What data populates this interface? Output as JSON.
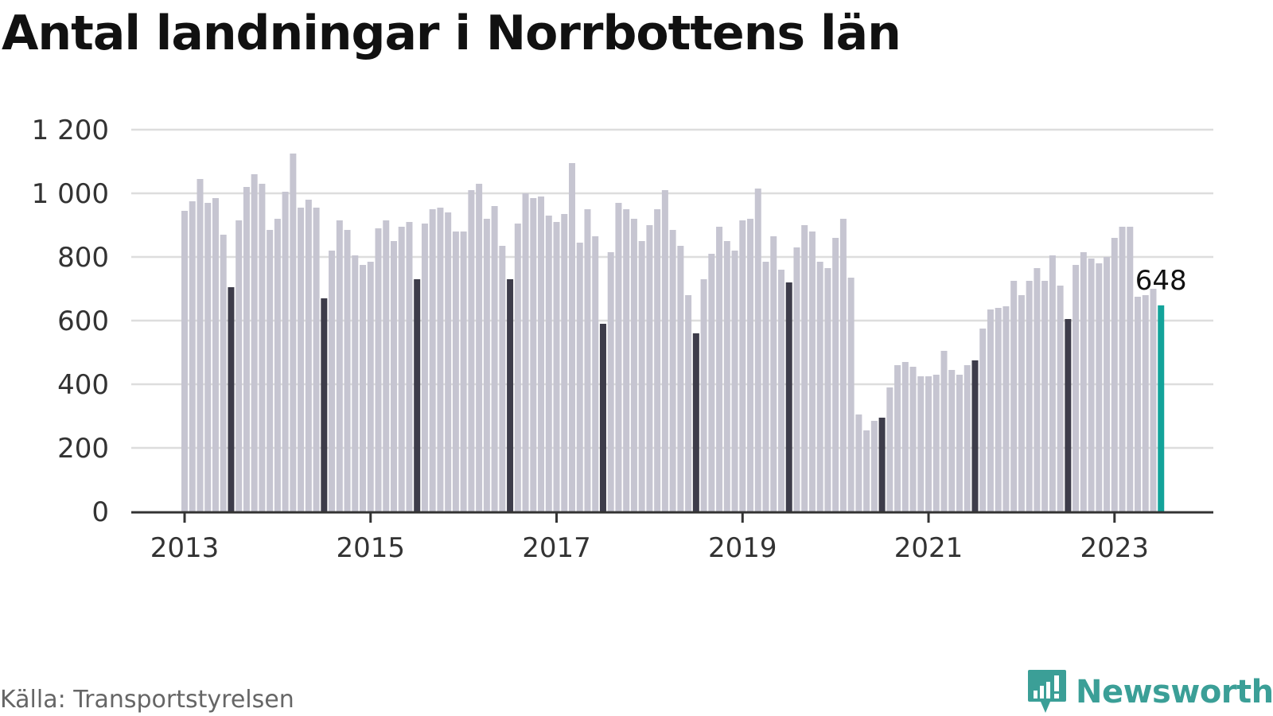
{
  "header": {
    "title": "Antal landningar i Norrbottens län"
  },
  "footer": {
    "source": "Källa: Transportstyrelsen",
    "brand": "Newsworthy"
  },
  "colors": {
    "normal": "#c6c5d1",
    "highlight_july": "#3d3c4a",
    "latest": "#13a39a",
    "grid": "#dddddd",
    "axis": "#333333",
    "brand": "#3b9f97"
  },
  "chart_data": {
    "type": "bar",
    "title": "Antal landningar i Norrbottens län",
    "xlabel": "",
    "ylabel": "",
    "ylim": [
      0,
      1200
    ],
    "yticks": [
      {
        "value": 0,
        "label": "0"
      },
      {
        "value": 200,
        "label": "200"
      },
      {
        "value": 400,
        "label": "400"
      },
      {
        "value": 600,
        "label": "600"
      },
      {
        "value": 800,
        "label": "800"
      },
      {
        "value": 1000,
        "label": "1 000"
      },
      {
        "value": 1200,
        "label": "1 200"
      }
    ],
    "xticks": [
      "2013",
      "2015",
      "2017",
      "2019",
      "2021",
      "2023"
    ],
    "grid": true,
    "start": "2013-01",
    "frequency": "monthly",
    "highlight": "July of each year shown in dark color; latest month shown in teal",
    "annotation": {
      "label": "648",
      "at": "2023-07"
    },
    "values": [
      945,
      975,
      1045,
      970,
      985,
      870,
      705,
      915,
      1020,
      1060,
      1030,
      885,
      920,
      1005,
      1125,
      955,
      980,
      955,
      670,
      820,
      915,
      885,
      805,
      775,
      785,
      890,
      915,
      850,
      895,
      910,
      730,
      905,
      950,
      955,
      940,
      880,
      880,
      1010,
      1030,
      920,
      960,
      835,
      730,
      905,
      1000,
      985,
      990,
      930,
      910,
      935,
      1095,
      845,
      950,
      865,
      590,
      815,
      970,
      950,
      920,
      850,
      900,
      950,
      1010,
      885,
      835,
      680,
      560,
      730,
      810,
      895,
      850,
      820,
      915,
      920,
      1015,
      785,
      865,
      760,
      720,
      830,
      900,
      880,
      785,
      765,
      860,
      920,
      735,
      305,
      255,
      285,
      295,
      390,
      460,
      470,
      455,
      425,
      425,
      430,
      505,
      445,
      430,
      460,
      475,
      575,
      635,
      640,
      645,
      725,
      680,
      725,
      765,
      725,
      805,
      710,
      605,
      775,
      815,
      795,
      780,
      800,
      860,
      895,
      895,
      675,
      680,
      700,
      648
    ]
  }
}
